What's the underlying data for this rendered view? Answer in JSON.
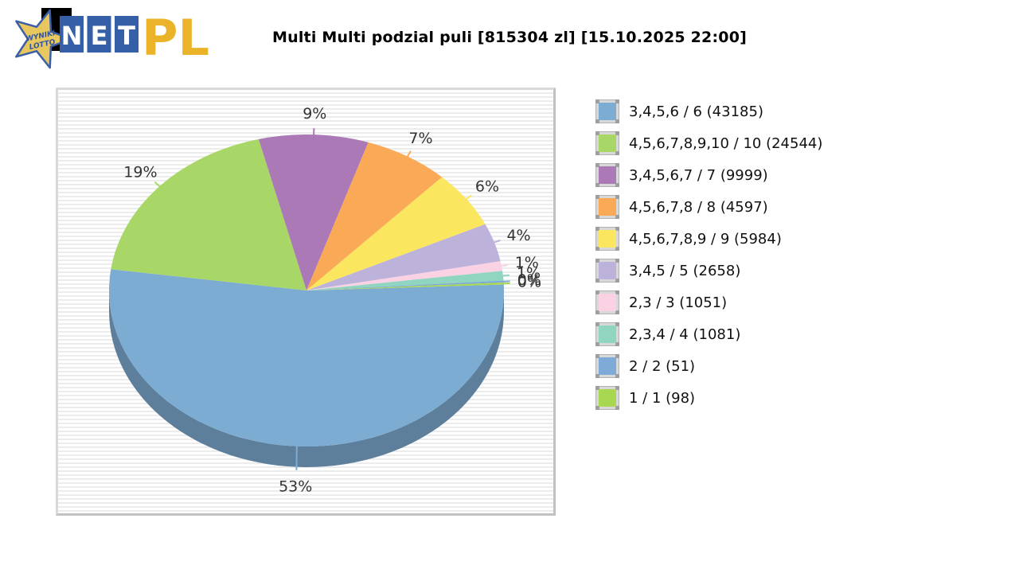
{
  "header": {
    "title": "Multi Multi podzial puli [815304 zl] [15.10.2025 22:00]",
    "logo": {
      "star_text_line1": "WYNIKI",
      "star_text_line2": "LOTTO",
      "net_letters": [
        "N",
        "E",
        "T"
      ],
      "suffix_text": "PL",
      "star_fill": "#e9c75f",
      "star_stroke": "#3a5fa8",
      "star_text_color": "#2f55a0",
      "tile_color": "#3560a8",
      "tile_letter_color": "#ffffff",
      "suffix_color": "#eab32a",
      "backdrop_color": "#000000"
    }
  },
  "chart_data": {
    "type": "pie",
    "title": "Multi Multi podzial puli [815304 zl] [15.10.2025 22:00]",
    "style": "3d",
    "legend_position": "right",
    "start_angle_deg": 2.2,
    "clockwise": true,
    "rim_color": "#5d7f9b",
    "label_color": "#333333",
    "slices": [
      {
        "label": "3,4,5,6 / 6",
        "winners": 43185,
        "pct": 53,
        "pct_label": "53%",
        "legend_label": "3,4,5,6 / 6 (43185)",
        "color": "#7dacd3"
      },
      {
        "label": "4,5,6,7,8,9,10 / 10",
        "winners": 24544,
        "pct": 19,
        "pct_label": "19%",
        "legend_label": "4,5,6,7,8,9,10 / 10 (24544)",
        "color": "#a8d768"
      },
      {
        "label": "3,4,5,6,7 / 7",
        "winners": 9999,
        "pct": 9,
        "pct_label": "9%",
        "legend_label": "3,4,5,6,7 / 7 (9999)",
        "color": "#ac79b7"
      },
      {
        "label": "4,5,6,7,8 / 8",
        "winners": 4597,
        "pct": 7,
        "pct_label": "7%",
        "legend_label": "4,5,6,7,8 / 8 (4597)",
        "color": "#faa957"
      },
      {
        "label": "4,5,6,7,8,9 / 9",
        "winners": 5984,
        "pct": 6,
        "pct_label": "6%",
        "legend_label": "4,5,6,7,8,9 / 9 (5984)",
        "color": "#fbe65f"
      },
      {
        "label": "3,4,5 / 5",
        "winners": 2658,
        "pct": 4,
        "pct_label": "4%",
        "legend_label": "3,4,5 / 5 (2658)",
        "color": "#bdb3da"
      },
      {
        "label": "2,3 / 3",
        "winners": 1051,
        "pct": 1,
        "pct_label": "1%",
        "legend_label": "2,3 / 3 (1051)",
        "color": "#fad2e4"
      },
      {
        "label": "2,3,4 / 4",
        "winners": 1081,
        "pct": 1,
        "pct_label": "1%",
        "legend_label": "2,3,4 / 4 (1081)",
        "color": "#8fd5c0"
      },
      {
        "label": "2 / 2",
        "winners": 51,
        "pct": 0,
        "pct_label": "0%",
        "legend_label": "2 / 2 (51)",
        "color": "#7fa9d6"
      },
      {
        "label": "1 / 1",
        "winners": 98,
        "pct": 0,
        "pct_label": "0%",
        "legend_label": "1 / 1 (98)",
        "color": "#a8d852"
      }
    ]
  }
}
